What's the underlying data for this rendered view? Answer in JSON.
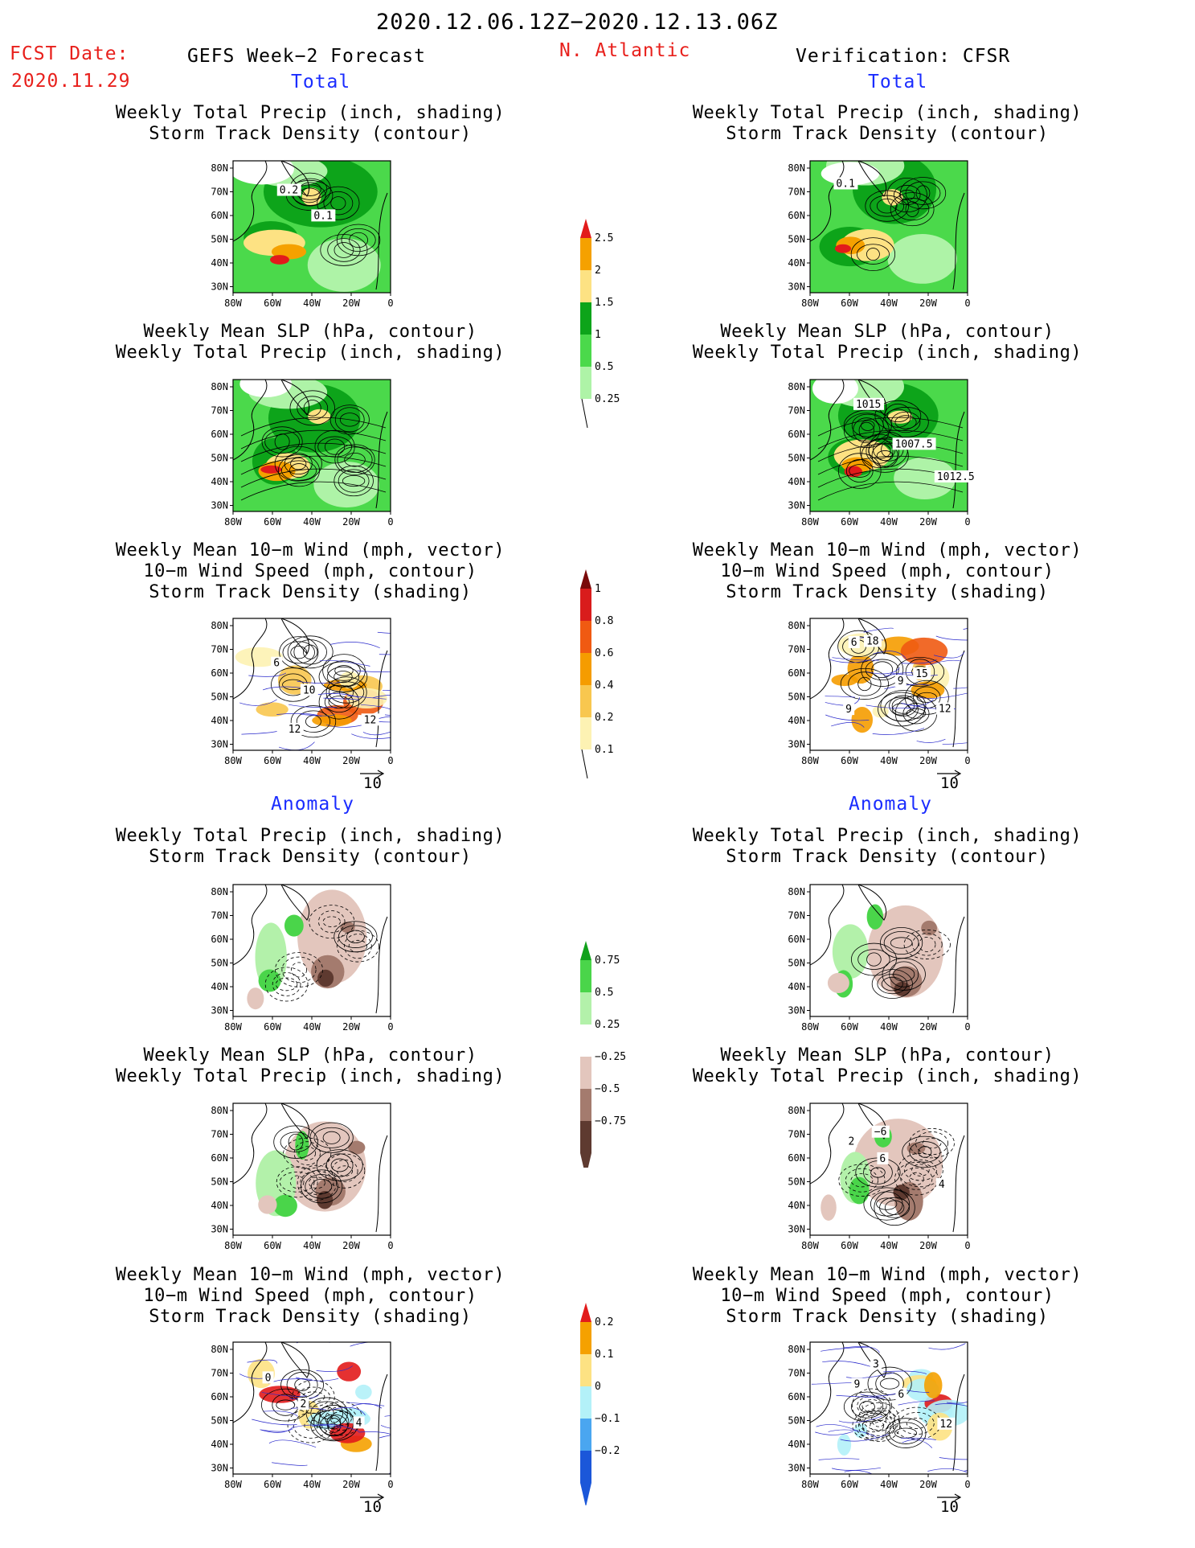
{
  "header": {
    "date_range": "2020.12.06.12Z−2020.12.13.06Z",
    "fcst_label": "FCST Date:",
    "fcst_date": "2020.11.29",
    "forecast_title": "GEFS Week−2 Forecast",
    "region": "N. Atlantic",
    "verification": "Verification: CFSR"
  },
  "sections": {
    "total": "Total",
    "anomaly": "Anomaly"
  },
  "panel_titles": {
    "precip": [
      "Weekly Total Precip (inch, shading)",
      "Storm Track Density (contour)"
    ],
    "slp": [
      "Weekly Mean SLP (hPa, contour)",
      "Weekly Total Precip (inch, shading)"
    ],
    "wind": [
      "Weekly Mean 10−m Wind (mph, vector)",
      "10−m Wind Speed (mph, contour)",
      "Storm Track Density (shading)"
    ]
  },
  "axes": {
    "lat_ticks": [
      "80N",
      "70N",
      "60N",
      "50N",
      "40N",
      "30N"
    ],
    "lon_ticks": [
      "80W",
      "60W",
      "40W",
      "20W",
      "0"
    ]
  },
  "vector_reference": "10",
  "map_labels": {
    "fcst_total_precip": [
      "0.2",
      "0.1"
    ],
    "obs_total_precip": [
      "0.1"
    ],
    "obs_total_slp": [
      "1015",
      "1007.5",
      "1012.5"
    ],
    "fcst_total_wind": [
      "6",
      "10",
      "12",
      "12"
    ],
    "obs_total_wind": [
      "6",
      "9",
      "12",
      "18",
      "15",
      "9"
    ],
    "obs_anom_slp": [
      "2",
      "6",
      "4",
      "−6"
    ],
    "fcst_anom_wind": [
      "0",
      "2",
      "4"
    ],
    "obs_anom_wind": [
      "9",
      "6",
      "12",
      "3"
    ]
  },
  "colorbars": {
    "total_precip": {
      "labels": [
        "2.5",
        "2",
        "1.5",
        "1",
        "0.5",
        "0.25"
      ],
      "colors": [
        "#e21b1b",
        "#f5a100",
        "#fde283",
        "#0da41a",
        "#4bd94b",
        "#aef3a7"
      ]
    },
    "total_std": {
      "labels": [
        "1",
        "0.8",
        "0.6",
        "0.4",
        "0.2",
        "0.1"
      ],
      "colors": [
        "#7a0a0a",
        "#d91c1c",
        "#f05a12",
        "#f59c00",
        "#f8c74f",
        "#fdf2b3"
      ]
    },
    "anom_precip": {
      "labels": [
        "0.75",
        "0.5",
        "0.25",
        "−0.25",
        "−0.5",
        "−0.75"
      ],
      "colors": [
        "#11a11b",
        "#4ad54a",
        "#b3f1aa",
        "#ffffff",
        "#e3c6bd",
        "#a47b6e",
        "#5e3a30"
      ]
    },
    "anom_std": {
      "labels": [
        "0.2",
        "0.1",
        "0",
        "−0.1",
        "−0.2"
      ],
      "colors": [
        "#e21b1b",
        "#f5a100",
        "#fde283",
        "#b3f1f8",
        "#4aa6f0",
        "#1b57d9"
      ]
    }
  },
  "colors": {
    "red_text": "#e8201c",
    "blue_text": "#1a2cff"
  }
}
